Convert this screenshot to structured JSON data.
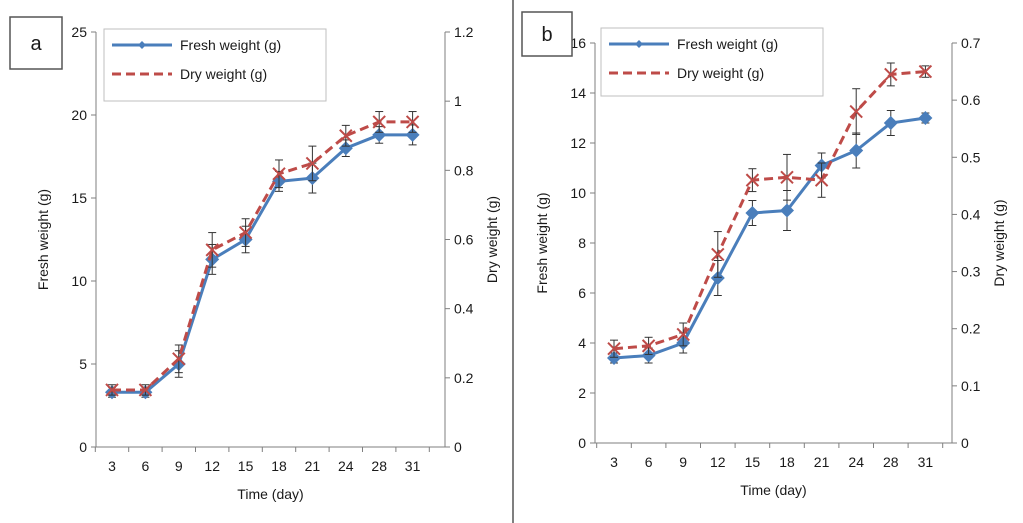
{
  "colors": {
    "fresh": "#4a7ebb",
    "dry": "#be4b48",
    "axis": "#7f7f7f",
    "text": "#1a1a1a"
  },
  "chart_data": [
    {
      "panel": "a",
      "type": "line",
      "panel_label": "a",
      "xlabel": "Time (day)",
      "ylabel_left": "Fresh weight (g)",
      "ylabel_right": "Dry weight (g)",
      "ylim_left": [
        0,
        25
      ],
      "ylim_right": [
        0,
        1.2
      ],
      "left_ticks": [
        "0",
        "5",
        "10",
        "15",
        "20",
        "25"
      ],
      "right_ticks": [
        "0",
        "0.2",
        "0.4",
        "0.6",
        "0.8",
        "1",
        "1.2"
      ],
      "categories": [
        "3",
        "6",
        "9",
        "12",
        "15",
        "18",
        "21",
        "24",
        "28",
        "31"
      ],
      "legend_position": "top-left",
      "grid": false,
      "series": [
        {
          "name": "Fresh weight (g)",
          "axis": "left",
          "style": "solid-diamond",
          "values": [
            3.3,
            3.3,
            5.0,
            11.3,
            12.5,
            16.0,
            16.2,
            18.0,
            18.8,
            18.8
          ],
          "errors": [
            0.3,
            0.3,
            0.8,
            0.9,
            0.8,
            0.6,
            0.9,
            0.5,
            0.5,
            0.6
          ]
        },
        {
          "name": "Dry weight (g)",
          "axis": "right",
          "style": "dashed-x",
          "values": [
            0.165,
            0.165,
            0.255,
            0.57,
            0.62,
            0.79,
            0.82,
            0.9,
            0.94,
            0.94
          ],
          "errors": [
            0.015,
            0.015,
            0.04,
            0.05,
            0.04,
            0.04,
            0.05,
            0.03,
            0.03,
            0.03
          ]
        }
      ]
    },
    {
      "panel": "b",
      "type": "line",
      "panel_label": "b",
      "xlabel": "Time (day)",
      "ylabel_left": "Fresh weight (g)",
      "ylabel_right": "Dry weight (g)",
      "ylim_left": [
        0,
        16
      ],
      "ylim_right": [
        0,
        0.7
      ],
      "left_ticks": [
        "0",
        "2",
        "4",
        "6",
        "8",
        "10",
        "12",
        "14",
        "16"
      ],
      "right_ticks": [
        "0",
        "0.1",
        "0.2",
        "0.3",
        "0.4",
        "0.5",
        "0.6",
        "0.7"
      ],
      "categories": [
        "3",
        "6",
        "9",
        "12",
        "15",
        "18",
        "21",
        "24",
        "28",
        "31"
      ],
      "legend_position": "top-left",
      "grid": false,
      "series": [
        {
          "name": "Fresh weight (g)",
          "axis": "left",
          "style": "solid-diamond",
          "values": [
            3.4,
            3.5,
            4.0,
            6.6,
            9.2,
            9.3,
            11.1,
            11.7,
            12.8,
            13.0
          ],
          "errors": [
            0.2,
            0.3,
            0.4,
            0.7,
            0.5,
            0.8,
            0.5,
            0.7,
            0.5,
            0.2
          ]
        },
        {
          "name": "Dry weight (g)",
          "axis": "right",
          "style": "dashed-x",
          "values": [
            0.165,
            0.17,
            0.19,
            0.33,
            0.46,
            0.465,
            0.46,
            0.58,
            0.645,
            0.65
          ],
          "errors": [
            0.015,
            0.015,
            0.02,
            0.04,
            0.02,
            0.04,
            0.03,
            0.04,
            0.02,
            0.01
          ]
        }
      ]
    }
  ]
}
